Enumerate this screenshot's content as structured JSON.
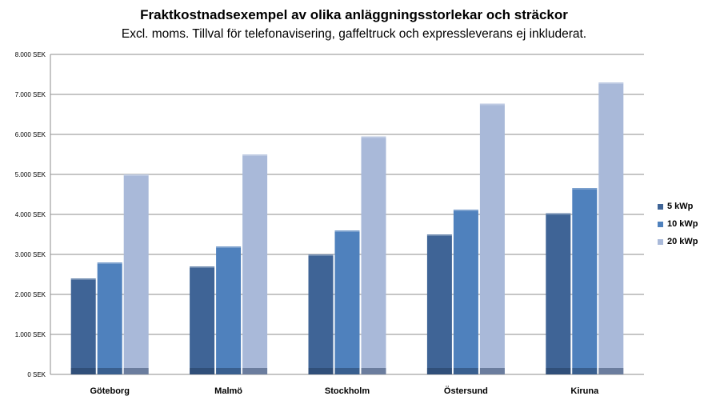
{
  "chart_data": {
    "type": "bar",
    "title": "Fraktkostnadsexempel av olika anläggningsstorlekar och sträckor",
    "subtitle": "Excl. moms. Tillval för telefonavisering, gaffeltruck och expressleverans ej inkluderat.",
    "categories": [
      "Göteborg",
      "Malmö",
      "Stockholm",
      "Östersund",
      "Kiruna"
    ],
    "series": [
      {
        "name": "5 kWp",
        "values": [
          2400,
          2700,
          3000,
          3500,
          4030
        ],
        "color": "#3f6496"
      },
      {
        "name": "10 kWp",
        "values": [
          2800,
          3200,
          3600,
          4120,
          4660
        ],
        "color": "#4f81bd"
      },
      {
        "name": "20 kWp",
        "values": [
          5000,
          5500,
          5950,
          6770,
          7300
        ],
        "color": "#a9b9d9"
      }
    ],
    "yticks": [
      "0 SEK",
      "1.000 SEK",
      "2.000 SEK",
      "3.000 SEK",
      "4.000 SEK",
      "5.000 SEK",
      "6.000 SEK",
      "7.000 SEK",
      "8.000 SEK"
    ],
    "ylim": [
      0,
      8000
    ],
    "grid": true,
    "legend_position": "right"
  }
}
